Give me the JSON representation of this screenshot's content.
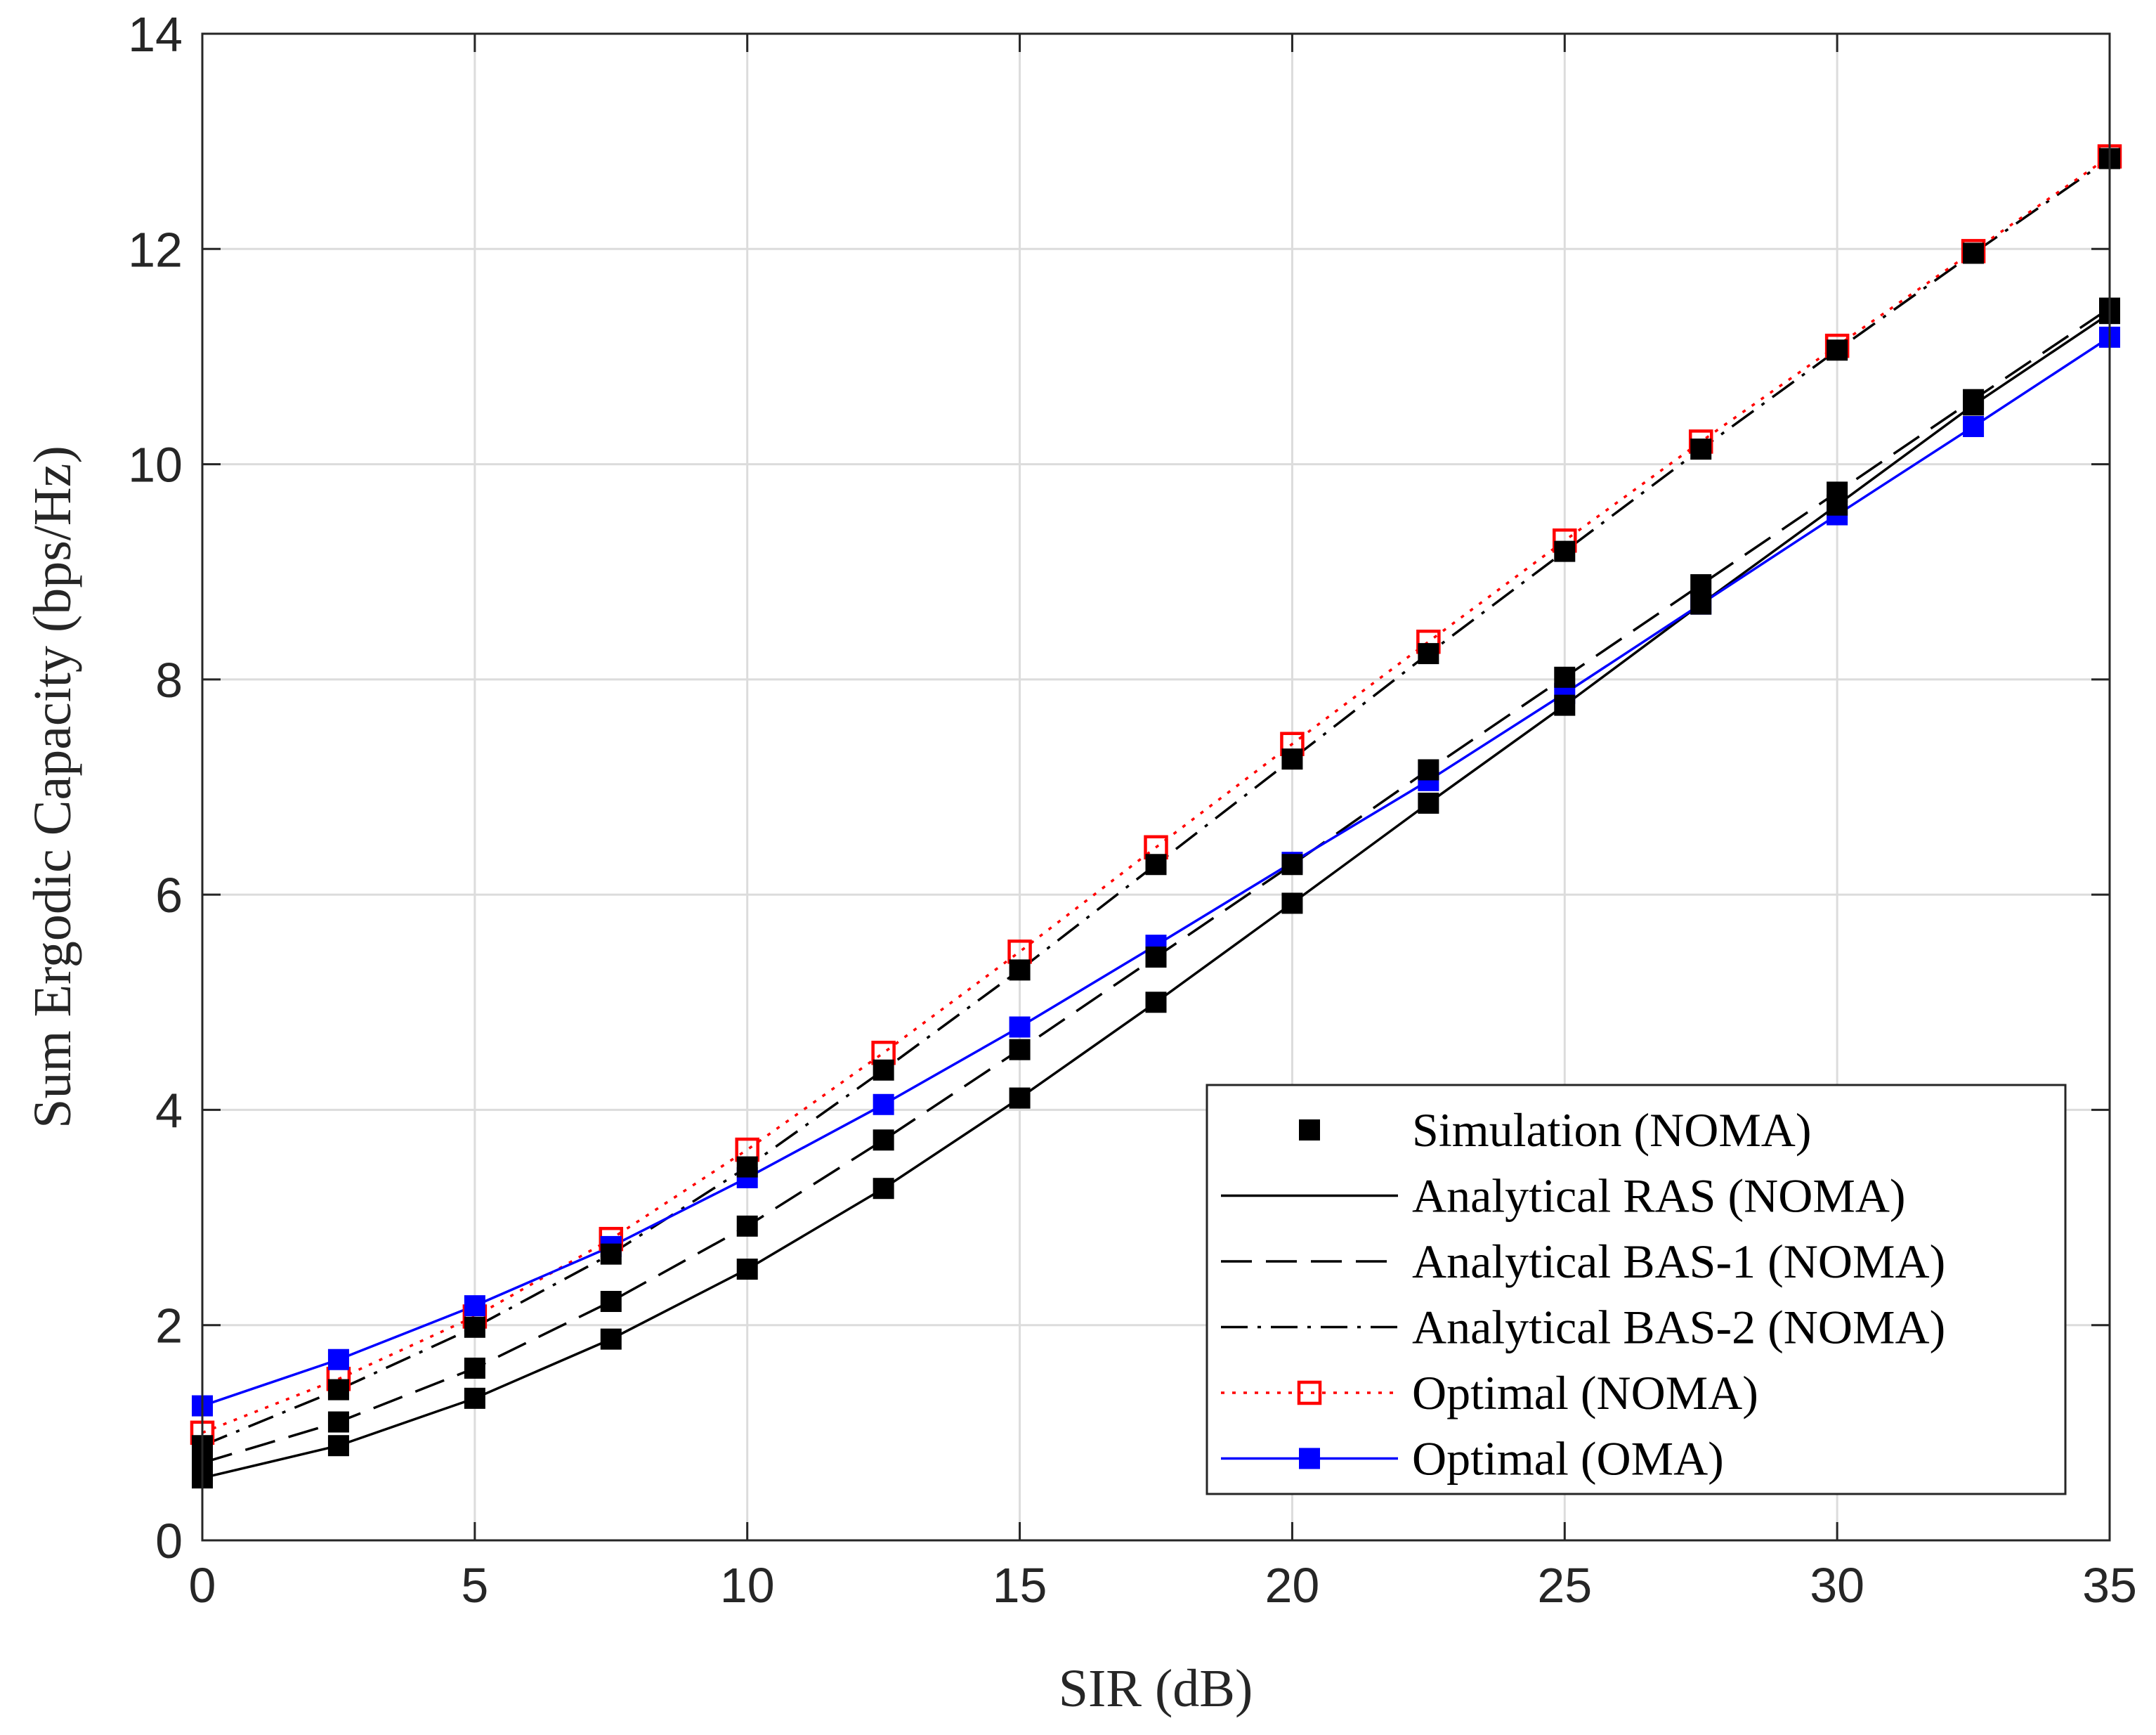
{
  "chart_data": {
    "type": "line",
    "title": "",
    "xlabel": "SIR (dB)",
    "ylabel": "Sum Ergodic Capacity (bps/Hz)",
    "xlim": [
      0,
      35
    ],
    "ylim": [
      0,
      14
    ],
    "xticks": [
      "0",
      "5",
      "10",
      "15",
      "20",
      "25",
      "30",
      "35"
    ],
    "yticks": [
      "0",
      "2",
      "4",
      "6",
      "8",
      "10",
      "12",
      "14"
    ],
    "grid": true,
    "legend_position": "bottom-right",
    "x": [
      0,
      2.5,
      5,
      7.5,
      10,
      12.5,
      15,
      17.5,
      20,
      22.5,
      25,
      27.5,
      30,
      32.5,
      35
    ],
    "series": [
      {
        "name": "Simulation (NOMA)",
        "style": "markers-only",
        "color": "#000000",
        "marker": "filled-square",
        "groups": [
          [
            0.58,
            0.88,
            1.32,
            1.87,
            2.52,
            3.27,
            4.11,
            5.0,
            5.92,
            6.85,
            7.76,
            8.7,
            9.62,
            10.55,
            11.4
          ],
          [
            0.72,
            1.1,
            1.6,
            2.22,
            2.92,
            3.72,
            4.56,
            5.42,
            6.28,
            7.16,
            8.02,
            8.88,
            9.74,
            10.6,
            11.45
          ],
          [
            0.88,
            1.4,
            1.98,
            2.66,
            3.47,
            4.37,
            5.3,
            6.28,
            7.26,
            8.24,
            9.19,
            10.14,
            11.06,
            11.96,
            12.84
          ]
        ]
      },
      {
        "name": "Analytical RAS (NOMA)",
        "style": "solid",
        "color": "#000000",
        "values": [
          0.58,
          0.88,
          1.32,
          1.87,
          2.52,
          3.27,
          4.11,
          5.0,
          5.92,
          6.85,
          7.76,
          8.7,
          9.62,
          10.55,
          11.4
        ]
      },
      {
        "name": "Analytical BAS-1 (NOMA)",
        "style": "dashed",
        "color": "#000000",
        "values": [
          0.72,
          1.1,
          1.6,
          2.22,
          2.92,
          3.72,
          4.56,
          5.42,
          6.28,
          7.16,
          8.02,
          8.88,
          9.74,
          10.6,
          11.45
        ]
      },
      {
        "name": "Analytical BAS-2 (NOMA)",
        "style": "dash-dot",
        "color": "#000000",
        "values": [
          0.88,
          1.4,
          1.98,
          2.66,
          3.47,
          4.37,
          5.3,
          6.28,
          7.26,
          8.24,
          9.19,
          10.14,
          11.06,
          11.96,
          12.84
        ]
      },
      {
        "name": "Optimal (NOMA)",
        "style": "dotted",
        "color": "#ff0000",
        "marker": "open-square",
        "values": [
          1.0,
          1.5,
          2.08,
          2.8,
          3.63,
          4.53,
          5.47,
          6.44,
          7.4,
          8.35,
          9.29,
          10.21,
          11.1,
          11.98,
          12.86
        ]
      },
      {
        "name": "Optimal (OMA)",
        "style": "solid",
        "color": "#0000ff",
        "marker": "filled-square",
        "values": [
          1.25,
          1.68,
          2.18,
          2.73,
          3.37,
          4.05,
          4.77,
          5.53,
          6.3,
          7.06,
          7.87,
          8.7,
          9.53,
          10.35,
          11.18
        ]
      }
    ]
  },
  "colors": {
    "grid": "#dcdcdc",
    "axis": "#262626",
    "background": "#ffffff"
  }
}
